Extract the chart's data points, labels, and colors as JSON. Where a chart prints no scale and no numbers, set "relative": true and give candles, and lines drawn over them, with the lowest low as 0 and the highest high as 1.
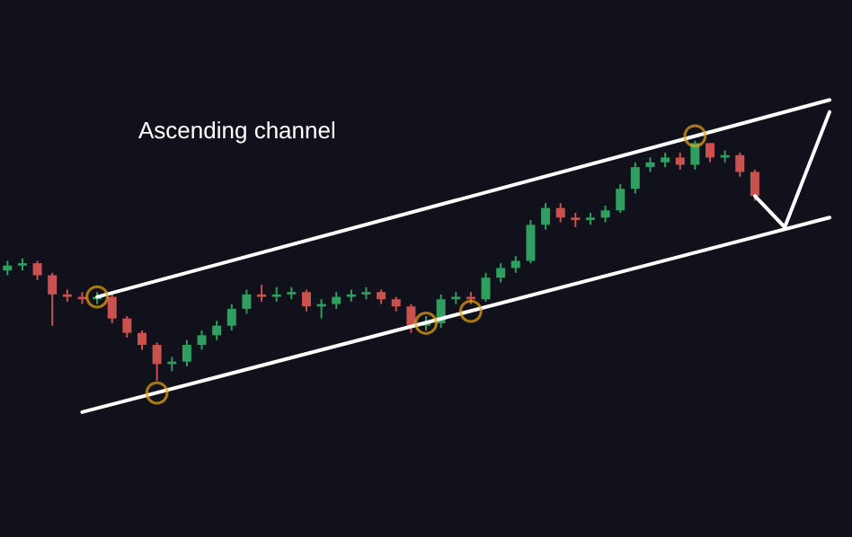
{
  "chart_data": {
    "type": "candlestick",
    "relative": true,
    "annotations": [
      "Ascending channel"
    ],
    "categories": [
      null,
      null,
      null,
      null,
      null,
      null,
      null,
      null,
      null,
      null,
      null,
      null,
      null,
      null,
      null,
      null,
      null,
      null,
      null,
      null,
      null,
      null,
      null,
      null,
      null,
      null,
      null,
      null,
      null,
      null,
      null,
      null,
      null,
      null,
      null,
      null,
      null,
      null,
      null,
      null,
      null,
      null,
      null,
      null,
      null,
      null,
      null,
      null,
      null,
      null,
      null,
      null,
      null,
      null,
      null,
      null,
      null
    ],
    "ohlc": [
      [
        0.46,
        0.5,
        0.44,
        0.48
      ],
      [
        0.48,
        0.51,
        0.46,
        0.49
      ],
      [
        0.49,
        0.5,
        0.42,
        0.44
      ],
      [
        0.44,
        0.45,
        0.23,
        0.36
      ],
      [
        0.36,
        0.38,
        0.33,
        0.35
      ],
      [
        0.35,
        0.37,
        0.32,
        0.34
      ],
      [
        0.34,
        0.37,
        0.32,
        0.35
      ],
      [
        0.35,
        0.36,
        0.24,
        0.26
      ],
      [
        0.26,
        0.27,
        0.18,
        0.2
      ],
      [
        0.2,
        0.21,
        0.13,
        0.15
      ],
      [
        0.15,
        0.16,
        0,
        0.07
      ],
      [
        0.07,
        0.1,
        0.04,
        0.08
      ],
      [
        0.08,
        0.17,
        0.06,
        0.15
      ],
      [
        0.15,
        0.21,
        0.13,
        0.19
      ],
      [
        0.19,
        0.25,
        0.17,
        0.23
      ],
      [
        0.23,
        0.32,
        0.21,
        0.3
      ],
      [
        0.3,
        0.38,
        0.28,
        0.36
      ],
      [
        0.36,
        0.4,
        0.33,
        0.35
      ],
      [
        0.35,
        0.39,
        0.33,
        0.36
      ],
      [
        0.36,
        0.39,
        0.34,
        0.37
      ],
      [
        0.37,
        0.38,
        0.29,
        0.31
      ],
      [
        0.31,
        0.34,
        0.26,
        0.32
      ],
      [
        0.32,
        0.37,
        0.3,
        0.35
      ],
      [
        0.35,
        0.38,
        0.33,
        0.36
      ],
      [
        0.36,
        0.39,
        0.34,
        0.37
      ],
      [
        0.37,
        0.38,
        0.32,
        0.34
      ],
      [
        0.34,
        0.35,
        0.29,
        0.31
      ],
      [
        0.31,
        0.32,
        0.2,
        0.23
      ],
      [
        0.23,
        0.27,
        0.21,
        0.24
      ],
      [
        0.24,
        0.36,
        0.22,
        0.34
      ],
      [
        0.34,
        0.37,
        0.32,
        0.35
      ],
      [
        0.35,
        0.37,
        0.32,
        0.34
      ],
      [
        0.34,
        0.45,
        0.33,
        0.43
      ],
      [
        0.43,
        0.49,
        0.41,
        0.47
      ],
      [
        0.47,
        0.52,
        0.45,
        0.5
      ],
      [
        0.5,
        0.67,
        0.49,
        0.65
      ],
      [
        0.65,
        0.74,
        0.63,
        0.72
      ],
      [
        0.72,
        0.74,
        0.66,
        0.68
      ],
      [
        0.68,
        0.7,
        0.64,
        0.67
      ],
      [
        0.67,
        0.7,
        0.65,
        0.68
      ],
      [
        0.68,
        0.73,
        0.66,
        0.71
      ],
      [
        0.71,
        0.82,
        0.7,
        0.8
      ],
      [
        0.8,
        0.91,
        0.78,
        0.89
      ],
      [
        0.89,
        0.93,
        0.87,
        0.91
      ],
      [
        0.91,
        0.95,
        0.89,
        0.93
      ],
      [
        0.93,
        0.95,
        0.88,
        0.9
      ],
      [
        0.9,
        1,
        0.88,
        0.99
      ],
      [
        0.99,
        0.99,
        0.91,
        0.93
      ],
      [
        0.93,
        0.96,
        0.91,
        0.94
      ],
      [
        0.94,
        0.95,
        0.85,
        0.87
      ],
      [
        0.87,
        0.88,
        0.75,
        0.77
      ],
      null,
      null,
      null,
      null,
      null,
      null
    ],
    "colors": [
      "#2f9e5f",
      "#2f9e5f",
      "#c9514f",
      "#c9514f",
      "#c9514f",
      "#c9514f",
      "#2f9e5f",
      "#c9514f",
      "#c9514f",
      "#c9514f",
      "#c9514f",
      "#2f9e5f",
      "#2f9e5f",
      "#2f9e5f",
      "#2f9e5f",
      "#2f9e5f",
      "#2f9e5f",
      "#c9514f",
      "#2f9e5f",
      "#2f9e5f",
      "#c9514f",
      "#2f9e5f",
      "#2f9e5f",
      "#2f9e5f",
      "#2f9e5f",
      "#c9514f",
      "#c9514f",
      "#c9514f",
      "#2f9e5f",
      "#2f9e5f",
      "#2f9e5f",
      "#c9514f",
      "#2f9e5f",
      "#2f9e5f",
      "#2f9e5f",
      "#2f9e5f",
      "#2f9e5f",
      "#c9514f",
      "#c9514f",
      "#2f9e5f",
      "#2f9e5f",
      "#2f9e5f",
      "#2f9e5f",
      "#2f9e5f",
      "#2f9e5f",
      "#c9514f",
      "#2f9e5f",
      "#c9514f",
      "#2f9e5f",
      "#c9514f",
      "#c9514f",
      null,
      null,
      null,
      null,
      null,
      null
    ],
    "series": [
      {
        "type": "line",
        "color": "#ffffff",
        "values": [
          null,
          null,
          null,
          null,
          null,
          null,
          0.35,
          null,
          null,
          null,
          null,
          null,
          null,
          null,
          null,
          null,
          null,
          null,
          null,
          null,
          null,
          null,
          null,
          null,
          null,
          null,
          null,
          null,
          null,
          null,
          null,
          null,
          null,
          null,
          null,
          null,
          null,
          null,
          null,
          null,
          null,
          null,
          null,
          null,
          null,
          null,
          null,
          null,
          null,
          null,
          null,
          null,
          null,
          null,
          null,
          1.17,
          null
        ]
      },
      {
        "type": "line",
        "color": "#ffffff",
        "values": [
          null,
          null,
          null,
          null,
          null,
          -0.13,
          null,
          null,
          null,
          null,
          null,
          null,
          null,
          null,
          null,
          null,
          null,
          null,
          null,
          null,
          null,
          null,
          null,
          null,
          null,
          null,
          null,
          null,
          null,
          null,
          null,
          null,
          null,
          null,
          null,
          null,
          null,
          null,
          null,
          null,
          null,
          null,
          null,
          null,
          null,
          null,
          null,
          null,
          null,
          null,
          null,
          null,
          null,
          null,
          null,
          0.68,
          null
        ]
      },
      {
        "type": "line",
        "color": "#ffffff",
        "values": [
          null,
          null,
          null,
          null,
          null,
          null,
          null,
          null,
          null,
          null,
          null,
          null,
          null,
          null,
          null,
          null,
          null,
          null,
          null,
          null,
          null,
          null,
          null,
          null,
          null,
          null,
          null,
          null,
          null,
          null,
          null,
          null,
          null,
          null,
          null,
          null,
          null,
          null,
          null,
          null,
          null,
          null,
          null,
          null,
          null,
          null,
          null,
          null,
          null,
          null,
          0.77,
          null,
          0.64,
          null,
          null,
          1.12,
          null
        ]
      },
      {
        "type": "scatter",
        "color": "#e8a317",
        "marker": "circle",
        "values": [
          null,
          null,
          null,
          null,
          null,
          null,
          0.35,
          null,
          null,
          null,
          -0.05,
          null,
          null,
          null,
          null,
          null,
          null,
          null,
          null,
          null,
          null,
          null,
          null,
          null,
          null,
          null,
          null,
          null,
          0.24,
          null,
          null,
          0.29,
          null,
          null,
          null,
          null,
          null,
          null,
          null,
          null,
          null,
          null,
          null,
          null,
          null,
          null,
          1.02,
          null,
          null,
          null,
          null,
          null,
          null,
          null,
          null,
          null,
          null
        ]
      }
    ]
  }
}
